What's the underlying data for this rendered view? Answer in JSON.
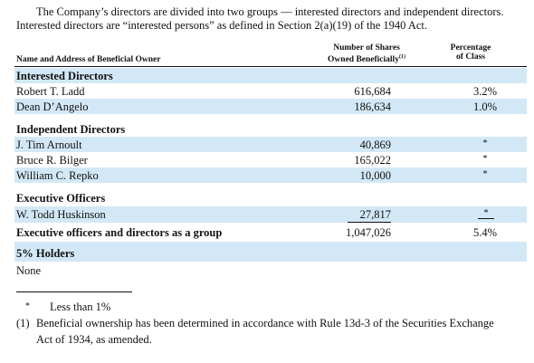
{
  "intro": {
    "lines": [
      "The Company’s directors are divided into two groups — interested directors and independent directors.",
      "Interested directors are “interested persons” as defined in Section 2(a)(19) of the 1940 Act."
    ]
  },
  "table": {
    "header": {
      "name": "Name and Address of Beneficial Owner",
      "shares_lines": [
        "Number of Shares",
        "Owned Beneficially"
      ],
      "shares_note": "(1)",
      "percent_lines": [
        "Percentage",
        "of Class"
      ]
    },
    "rows": [
      {
        "name": "Interested Directors"
      },
      {
        "name": "Robert T. Ladd",
        "shares": "616,684",
        "percent": "3.2%"
      },
      {
        "name": "Dean D’Angelo",
        "shares": "186,634",
        "percent": "1.0%"
      },
      {
        "name": "Independent Directors"
      },
      {
        "name": "J. Tim Arnoult",
        "shares": "40,869",
        "percent": "*"
      },
      {
        "name": "Bruce R. Bilger",
        "shares": "165,022",
        "percent": "*"
      },
      {
        "name": "William C. Repko",
        "shares": "10,000",
        "percent": "*"
      },
      {
        "name": "Executive Officers"
      },
      {
        "name": "W. Todd Huskinson",
        "shares": "27,817",
        "percent": "*"
      },
      {
        "name": "Executive officers and directors as a group",
        "shares": "1,047,026",
        "percent": "5.4%"
      },
      {
        "name": "5% Holders"
      },
      {
        "name": "None"
      }
    ]
  },
  "footnotes": [
    {
      "mark": "*",
      "lines": [
        "Less than 1%"
      ]
    },
    {
      "mark": "(1)",
      "lines": [
        "Beneficial ownership has been determined in accordance with Rule 13d-3 of the Securities Exchange",
        "Act of 1934, as amended."
      ]
    }
  ]
}
